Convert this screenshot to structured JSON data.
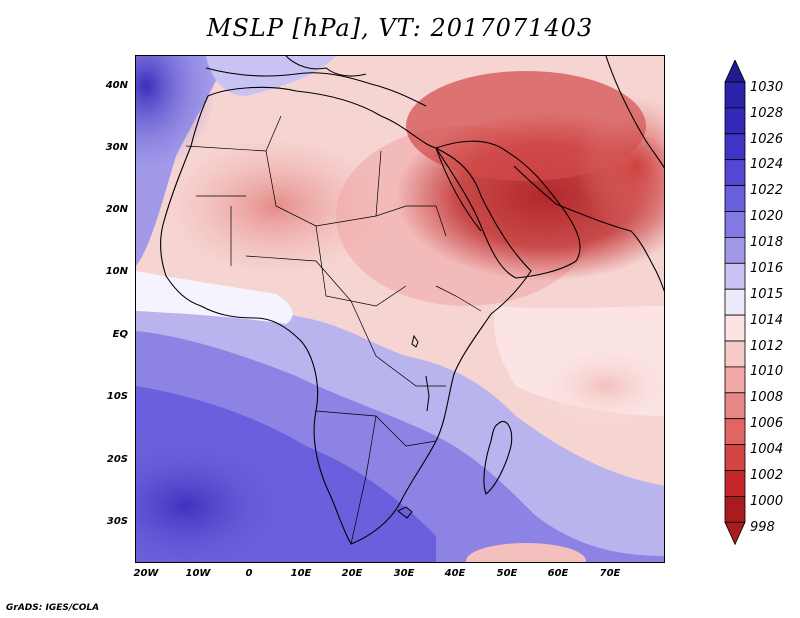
{
  "title": "MSLP [hPa], VT: 2017071403",
  "footer": "GrADS: IGES/COLA",
  "map": {
    "lat_labels": [
      "40N",
      "30N",
      "20N",
      "10N",
      "EQ",
      "10S",
      "20S",
      "30S"
    ],
    "lon_labels": [
      "20W",
      "10W",
      "0",
      "10E",
      "20E",
      "30E",
      "40E",
      "50E",
      "60E",
      "70E"
    ]
  },
  "colorbar": {
    "levels": [
      "1030",
      "1028",
      "1026",
      "1024",
      "1022",
      "1020",
      "1018",
      "1016",
      "1015",
      "1014",
      "1012",
      "1010",
      "1008",
      "1006",
      "1004",
      "1002",
      "1000",
      "998"
    ],
    "colors": [
      "#231a8f",
      "#2a22a8",
      "#3428b8",
      "#3f34c6",
      "#5547d3",
      "#6a5fdc",
      "#8479e3",
      "#a29ae9",
      "#c8c3f2",
      "#ecebfb",
      "#fbe4e3",
      "#f7c9c7",
      "#f0a9a7",
      "#e88886",
      "#e06563",
      "#d44442",
      "#c4272a",
      "#a81c20"
    ]
  }
}
